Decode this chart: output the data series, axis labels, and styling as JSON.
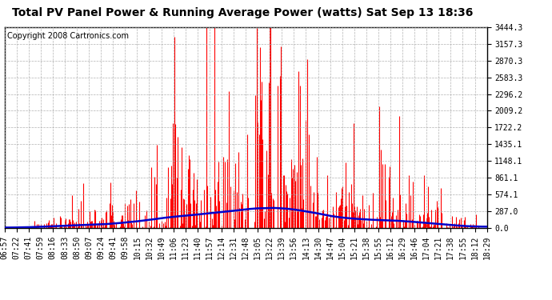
{
  "title": "Total PV Panel Power & Running Average Power (watts) Sat Sep 13 18:36",
  "copyright": "Copyright 2008 Cartronics.com",
  "background_color": "#ffffff",
  "plot_bg_color": "#ffffff",
  "ytick_labels": [
    "0.0",
    "287.0",
    "574.1",
    "861.1",
    "1148.1",
    "1435.1",
    "1722.2",
    "2009.2",
    "2296.2",
    "2583.3",
    "2870.3",
    "3157.3",
    "3444.3"
  ],
  "ytick_values": [
    0.0,
    287.0,
    574.1,
    861.1,
    1148.1,
    1435.1,
    1722.2,
    2009.2,
    2296.2,
    2583.3,
    2870.3,
    3157.3,
    3444.3
  ],
  "ymax": 3444.3,
  "bar_color": "#ff0000",
  "avg_color": "#0000cc",
  "grid_color": "#aaaaaa",
  "title_fontsize": 10,
  "copyright_fontsize": 7,
  "tick_fontsize": 7,
  "xtick_labels": [
    "06:57",
    "07:22",
    "07:41",
    "07:59",
    "08:16",
    "08:33",
    "08:50",
    "09:07",
    "09:24",
    "09:41",
    "09:58",
    "10:15",
    "10:32",
    "10:49",
    "11:06",
    "11:23",
    "11:40",
    "11:57",
    "12:14",
    "12:31",
    "12:48",
    "13:05",
    "13:22",
    "13:39",
    "13:56",
    "14:13",
    "14:30",
    "14:47",
    "15:04",
    "15:21",
    "15:38",
    "15:55",
    "16:12",
    "16:29",
    "16:46",
    "17:04",
    "17:21",
    "17:38",
    "17:55",
    "18:12",
    "18:29"
  ]
}
